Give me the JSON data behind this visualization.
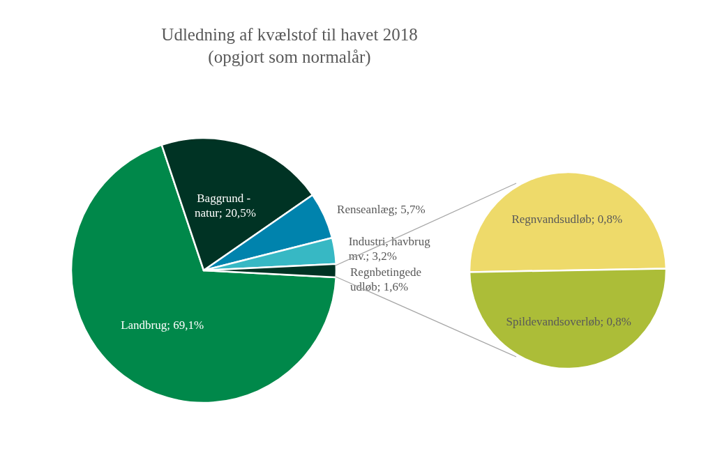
{
  "chart_data": [
    {
      "type": "pie",
      "title": "Udledning af kvælstof til havet 2018\n(opgjort som normalår)",
      "categories": [
        "Landbrug",
        "Baggrund - natur",
        "Renseanlæg",
        "Industri, havbrug mv.",
        "Regnbetingede udløb"
      ],
      "values": [
        69.1,
        20.5,
        5.7,
        3.2,
        1.6
      ],
      "colors": [
        "#00884a",
        "#003324",
        "#0083ad",
        "#37b8c4",
        "#003324"
      ],
      "value_labels": [
        "69,1%",
        "20,5%",
        "5,7%",
        "3,2%",
        "1,6%"
      ]
    },
    {
      "type": "pie",
      "categories": [
        "Regnvandsudløb",
        "Spildevandsoverløb"
      ],
      "values": [
        0.8,
        0.8
      ],
      "colors": [
        "#eeda6a",
        "#acbd38"
      ],
      "value_labels": [
        "0,8%",
        "0,8%"
      ]
    }
  ]
}
